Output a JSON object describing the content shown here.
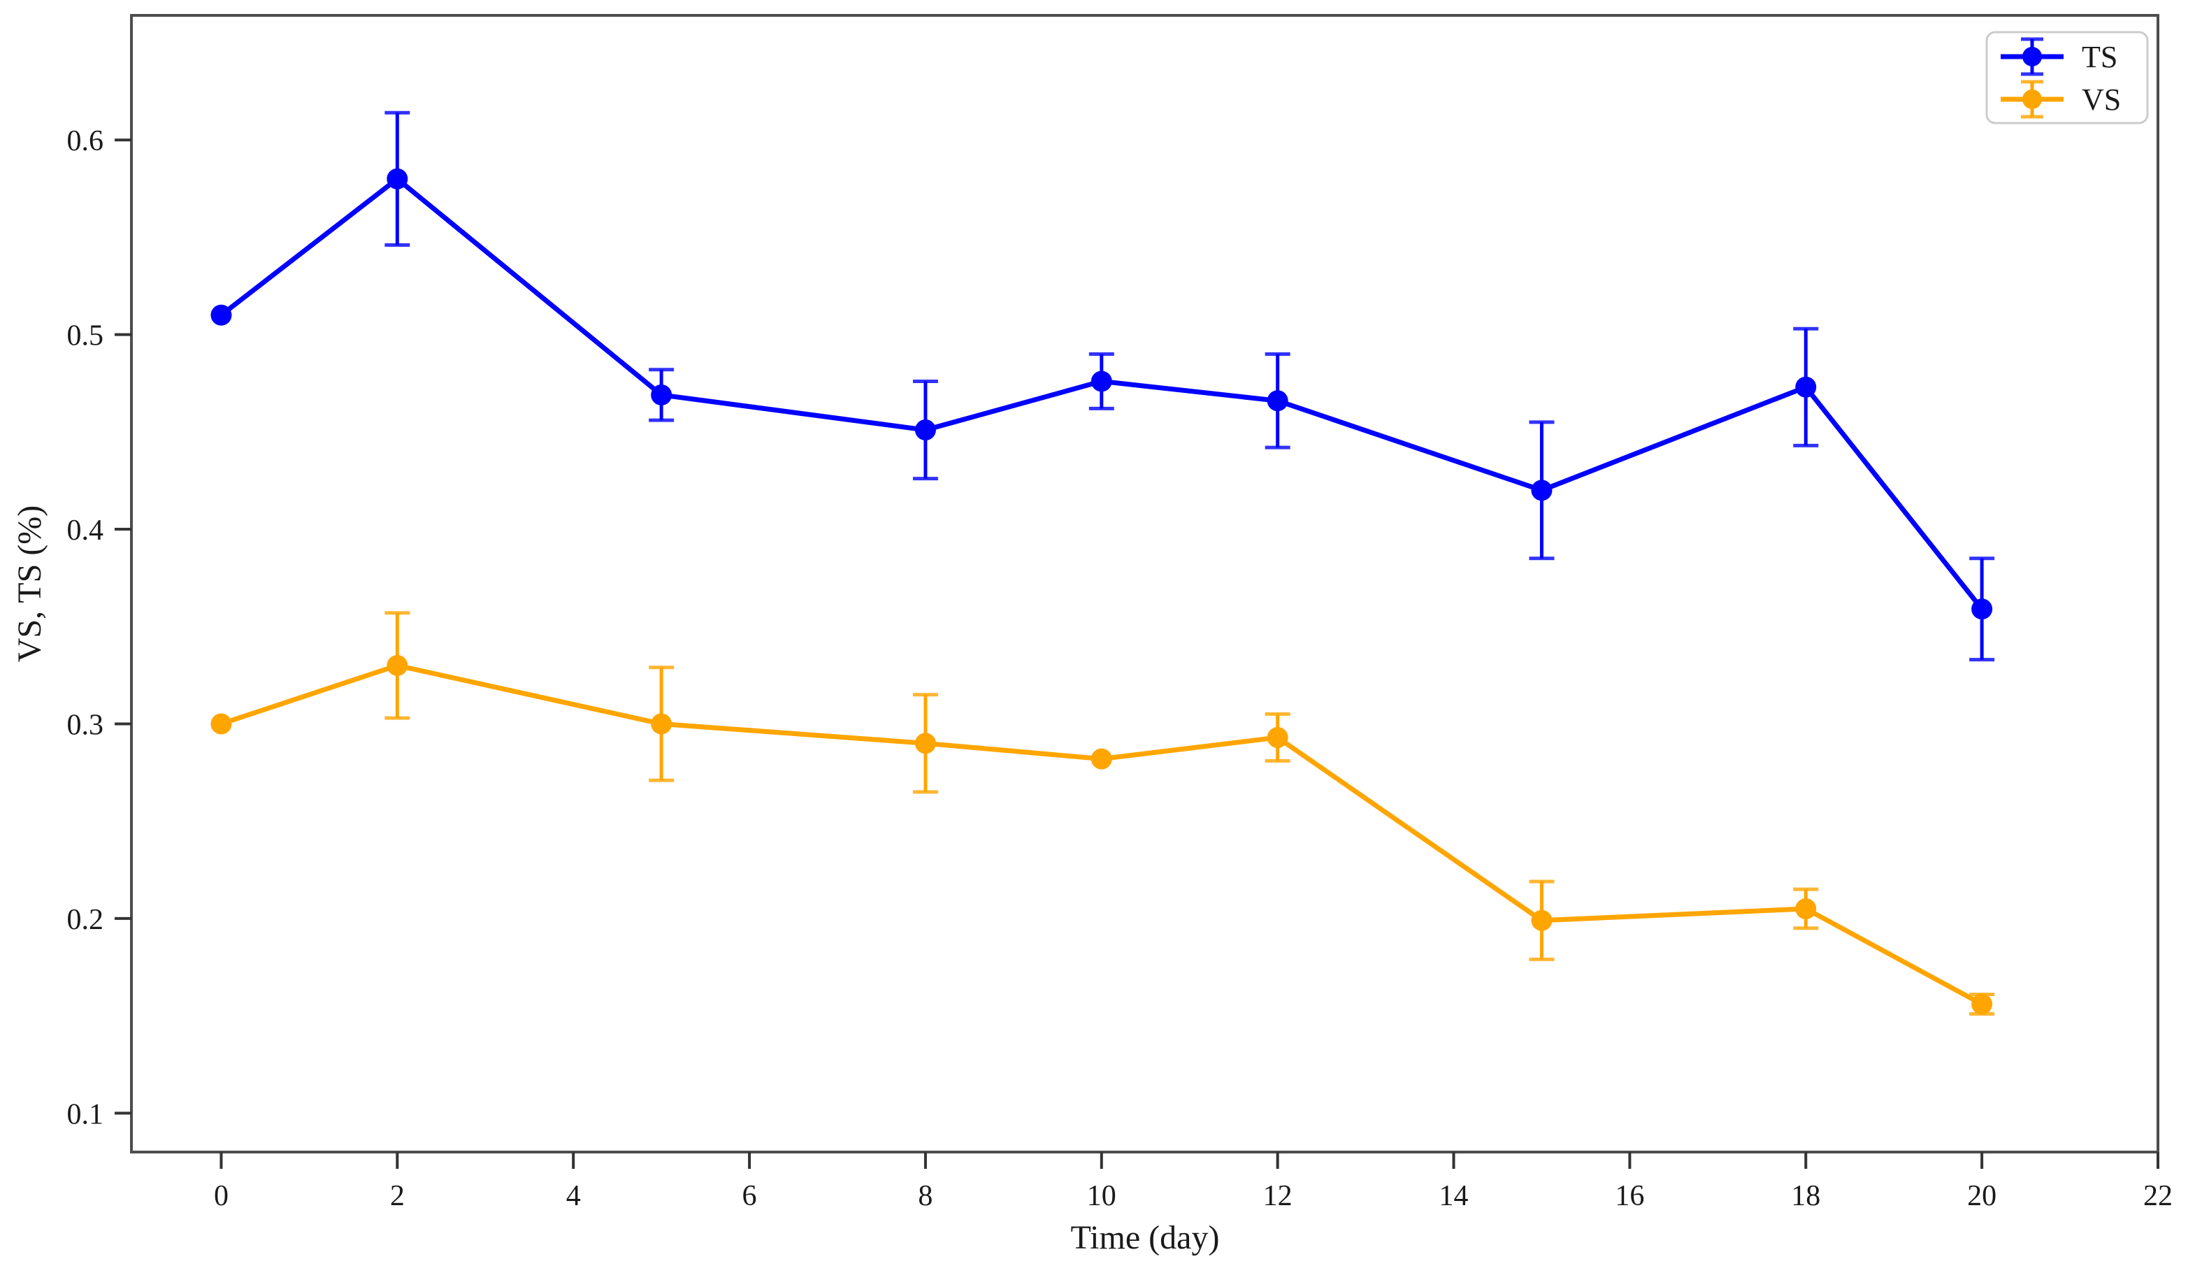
{
  "chart_data": {
    "type": "line",
    "title": "",
    "xlabel": "Time (day)",
    "ylabel": "VS, TS (%)",
    "x": [
      0,
      2,
      5,
      8,
      10,
      12,
      15,
      18,
      20
    ],
    "series": [
      {
        "name": "TS",
        "color": "#0000ff",
        "values": [
          0.51,
          0.58,
          0.469,
          0.451,
          0.476,
          0.466,
          0.42,
          0.473,
          0.359
        ],
        "yerr": [
          0,
          0.034,
          0.013,
          0.025,
          0.014,
          0.024,
          0.035,
          0.03,
          0.026
        ]
      },
      {
        "name": "VS",
        "color": "#ffa500",
        "values": [
          0.3,
          0.33,
          0.3,
          0.29,
          0.282,
          0.293,
          0.199,
          0.205,
          0.156
        ],
        "yerr": [
          0,
          0.027,
          0.029,
          0.025,
          0,
          0.012,
          0.02,
          0.01,
          0.005
        ]
      }
    ],
    "x_ticks": [
      0,
      2,
      4,
      6,
      8,
      10,
      12,
      14,
      16,
      18,
      20,
      22
    ],
    "y_ticks": [
      0.1,
      0.2,
      0.3,
      0.4,
      0.5,
      0.6
    ],
    "xlim": [
      -1.02,
      22.0
    ],
    "ylim": [
      0.08,
      0.664
    ],
    "grid": false,
    "legend_position": "upper right",
    "marker": "circle-with-errorbars",
    "frame_color": "#4d4d4d",
    "tick_color": "#333333"
  }
}
